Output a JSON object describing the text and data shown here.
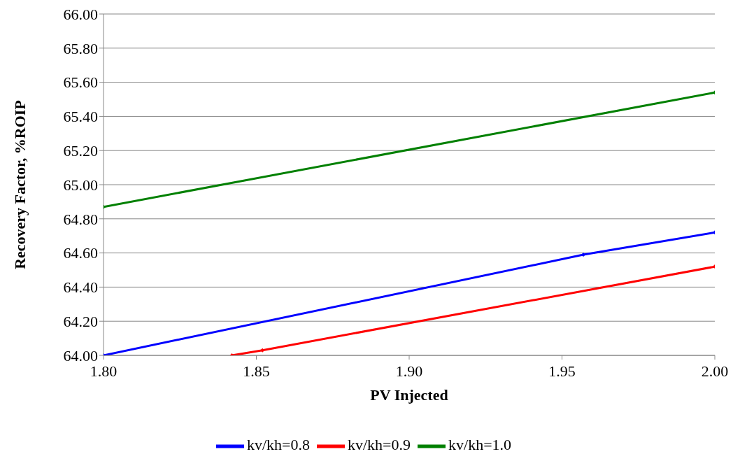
{
  "chart_data": {
    "type": "line",
    "xlabel": "PV Injected",
    "ylabel": "Recovery Factor, %ROIP",
    "series": [
      {
        "name": "kv/kh=0.8",
        "color": "#0000ff",
        "x": [
          1.8,
          1.957,
          2.0
        ],
        "values": [
          64.0,
          64.59,
          64.72
        ]
      },
      {
        "name": "kv/kh=0.9",
        "color": "#ff0000",
        "x": [
          1.842,
          1.852,
          2.0
        ],
        "values": [
          64.0,
          64.03,
          64.52
        ]
      },
      {
        "name": "kv/kh=1.0",
        "color": "#008000",
        "x": [
          1.8,
          2.0
        ],
        "values": [
          64.87,
          65.54
        ]
      }
    ],
    "xlim": [
      1.8,
      2.0
    ],
    "xticks": [
      {
        "value": 1.8,
        "label": "1.80"
      },
      {
        "value": 1.85,
        "label": "1.85"
      },
      {
        "value": 1.9,
        "label": "1.90"
      },
      {
        "value": 1.95,
        "label": "1.95"
      },
      {
        "value": 2.0,
        "label": "2.00"
      }
    ],
    "ylim": [
      64.0,
      66.0
    ],
    "yticks": [
      {
        "value": 64.0,
        "label": "64.00"
      },
      {
        "value": 64.2,
        "label": "64.20"
      },
      {
        "value": 64.4,
        "label": "64.40"
      },
      {
        "value": 64.6,
        "label": "64.60"
      },
      {
        "value": 64.8,
        "label": "64.80"
      },
      {
        "value": 65.0,
        "label": "65.00"
      },
      {
        "value": 65.2,
        "label": "65.20"
      },
      {
        "value": 65.4,
        "label": "65.40"
      },
      {
        "value": 65.6,
        "label": "65.60"
      },
      {
        "value": 65.8,
        "label": "65.80"
      },
      {
        "value": 66.0,
        "label": "66.00"
      }
    ],
    "grid": "y",
    "legend": "bottom",
    "marker": "diamond",
    "line_style": "solid"
  }
}
